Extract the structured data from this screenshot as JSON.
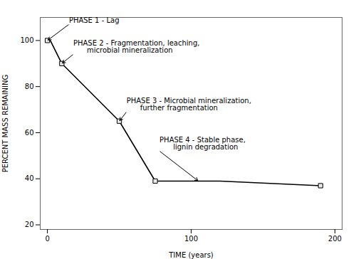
{
  "chart_data": {
    "type": "line",
    "series": [
      {
        "type": "line",
        "color": "#000000",
        "x": [
          0,
          2,
          10,
          50,
          75,
          120,
          190
        ],
        "values": [
          100,
          100,
          90,
          65,
          39,
          39,
          37
        ]
      },
      {
        "type": "scatter",
        "marker": "square",
        "color": "#e8e8e8",
        "x": [
          0,
          10,
          50,
          75,
          190
        ],
        "values": [
          100,
          90,
          65,
          39,
          37
        ]
      }
    ],
    "xlim": [
      -5,
      205
    ],
    "ylim": [
      18,
      110
    ],
    "xticks": [
      0,
      100,
      200
    ],
    "yticks": [
      20,
      40,
      60,
      80,
      100
    ],
    "xlabel": "TIME (years)",
    "ylabel": "PERCENT MASS REMAINING",
    "annotations": [
      {
        "text": "PHASE 1 - Lag",
        "xy": [
          0,
          100
        ],
        "xytext": [
          15,
          107
        ]
      },
      {
        "text": "PHASE 2 - Fragmentation, leaching,\n      microbial mineralization",
        "xy": [
          10,
          90
        ],
        "xytext": [
          18,
          94
        ]
      },
      {
        "text": "PHASE 3 - Microbial mineralization,\n      further fragmentation",
        "xy": [
          50,
          65
        ],
        "xytext": [
          55,
          69
        ]
      },
      {
        "text": "PHASE 4 - Stable phase,\n      lignin degradation",
        "xy": [
          105,
          39
        ],
        "xytext": [
          78,
          52
        ]
      }
    ]
  }
}
